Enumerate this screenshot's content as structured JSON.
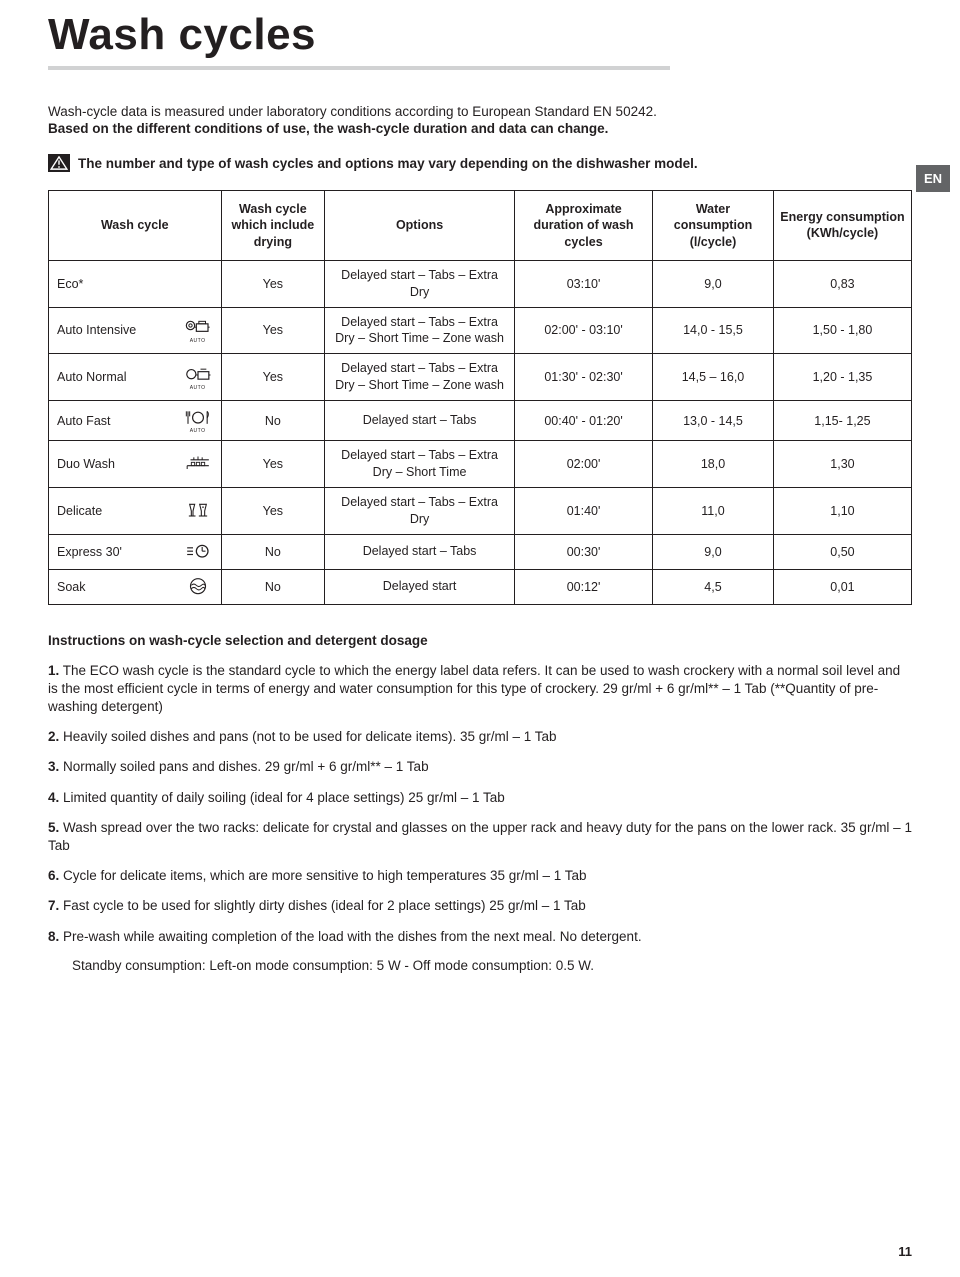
{
  "lang_badge": "EN",
  "page_number": "11",
  "title": "Wash cycles",
  "intro_line1": "Wash-cycle data is measured under laboratory conditions according to European Standard EN 50242.",
  "intro_line2": "Based on the different conditions of use, the wash-cycle duration and data can change.",
  "warning_text": "The number and type of wash cycles and options may vary depending on the dishwasher model.",
  "table": {
    "headers": {
      "name": "Wash cycle",
      "drying": "Wash cycle which include drying",
      "options": "Options",
      "duration": "Approximate duration of wash cycles",
      "water": "Water consumption (l/cycle)",
      "energy": "Energy consumption (KWh/cycle)"
    },
    "rows": [
      {
        "name": "Eco*",
        "icon": "none",
        "auto": false,
        "drying": "Yes",
        "options": "Delayed start – Tabs – Extra Dry",
        "duration": "03:10'",
        "water": "9,0",
        "energy": "0,83"
      },
      {
        "name": "Auto Intensive",
        "icon": "pot-heavy",
        "auto": true,
        "drying": "Yes",
        "options": "Delayed start – Tabs – Extra Dry – Short Time – Zone wash",
        "duration": "02:00' - 03:10'",
        "water": "14,0 - 15,5",
        "energy": "1,50 - 1,80"
      },
      {
        "name": "Auto Normal",
        "icon": "pot",
        "auto": true,
        "drying": "Yes",
        "options": "Delayed start – Tabs – Extra Dry – Short Time – Zone wash",
        "duration": "01:30' - 02:30'",
        "water": "14,5 – 16,0",
        "energy": "1,20 - 1,35"
      },
      {
        "name": "Auto Fast",
        "icon": "cutlery-plate",
        "auto": true,
        "drying": "No",
        "options": "Delayed start – Tabs",
        "duration": "00:40' - 01:20'",
        "water": "13,0 - 14,5",
        "energy": "1,15- 1,25"
      },
      {
        "name": "Duo Wash",
        "icon": "racks",
        "auto": false,
        "drying": "Yes",
        "options": "Delayed start – Tabs – Extra Dry – Short Time",
        "duration": "02:00'",
        "water": "18,0",
        "energy": "1,30"
      },
      {
        "name": "Delicate",
        "icon": "glasses",
        "auto": false,
        "drying": "Yes",
        "options": "Delayed start – Tabs – Extra Dry",
        "duration": "01:40'",
        "water": "11,0",
        "energy": "1,10"
      },
      {
        "name": "Express 30'",
        "icon": "express",
        "auto": false,
        "drying": "No",
        "options": "Delayed start – Tabs",
        "duration": "00:30'",
        "water": "9,0",
        "energy": "0,50"
      },
      {
        "name": "Soak",
        "icon": "soak",
        "auto": false,
        "drying": "No",
        "options": "Delayed start",
        "duration": "00:12'",
        "water": "4,5",
        "energy": "0,01"
      }
    ]
  },
  "instructions": {
    "heading": "Instructions on wash-cycle selection and detergent dosage",
    "items": [
      {
        "n": "1.",
        "text": " The ECO wash cycle is the standard cycle to which the energy label data refers. It can be used to wash crockery with a normal soil level and is the most efficient cycle in terms of energy and water consumption for this type of crockery. 29 gr/ml + 6 gr/ml** – 1 Tab (**Quantity of pre-washing detergent)"
      },
      {
        "n": "2.",
        "text": " Heavily soiled dishes and pans (not to be used for delicate items). 35 gr/ml – 1 Tab"
      },
      {
        "n": "3.",
        "text": " Normally soiled pans and dishes. 29 gr/ml + 6 gr/ml** – 1 Tab"
      },
      {
        "n": "4.",
        "text": " Limited quantity of daily soiling (ideal for 4 place settings) 25 gr/ml – 1 Tab"
      },
      {
        "n": "5.",
        "text": " Wash spread over the two racks: delicate for crystal and glasses on the upper rack and heavy duty for the pans on the lower rack. 35 gr/ml – 1 Tab"
      },
      {
        "n": "6.",
        "text": " Cycle for delicate items, which are more sensitive to high temperatures 35 gr/ml – 1 Tab"
      },
      {
        "n": "7.",
        "text": " Fast cycle to be used for slightly dirty dishes (ideal for 2 place settings) 25 gr/ml – 1 Tab"
      },
      {
        "n": "8.",
        "text": " Pre-wash while awaiting completion of the load with the dishes from the next meal. No detergent."
      }
    ],
    "standby": "Standby consumption: Left-on mode consumption: 5 W - Off mode consumption: 0.5 W."
  }
}
